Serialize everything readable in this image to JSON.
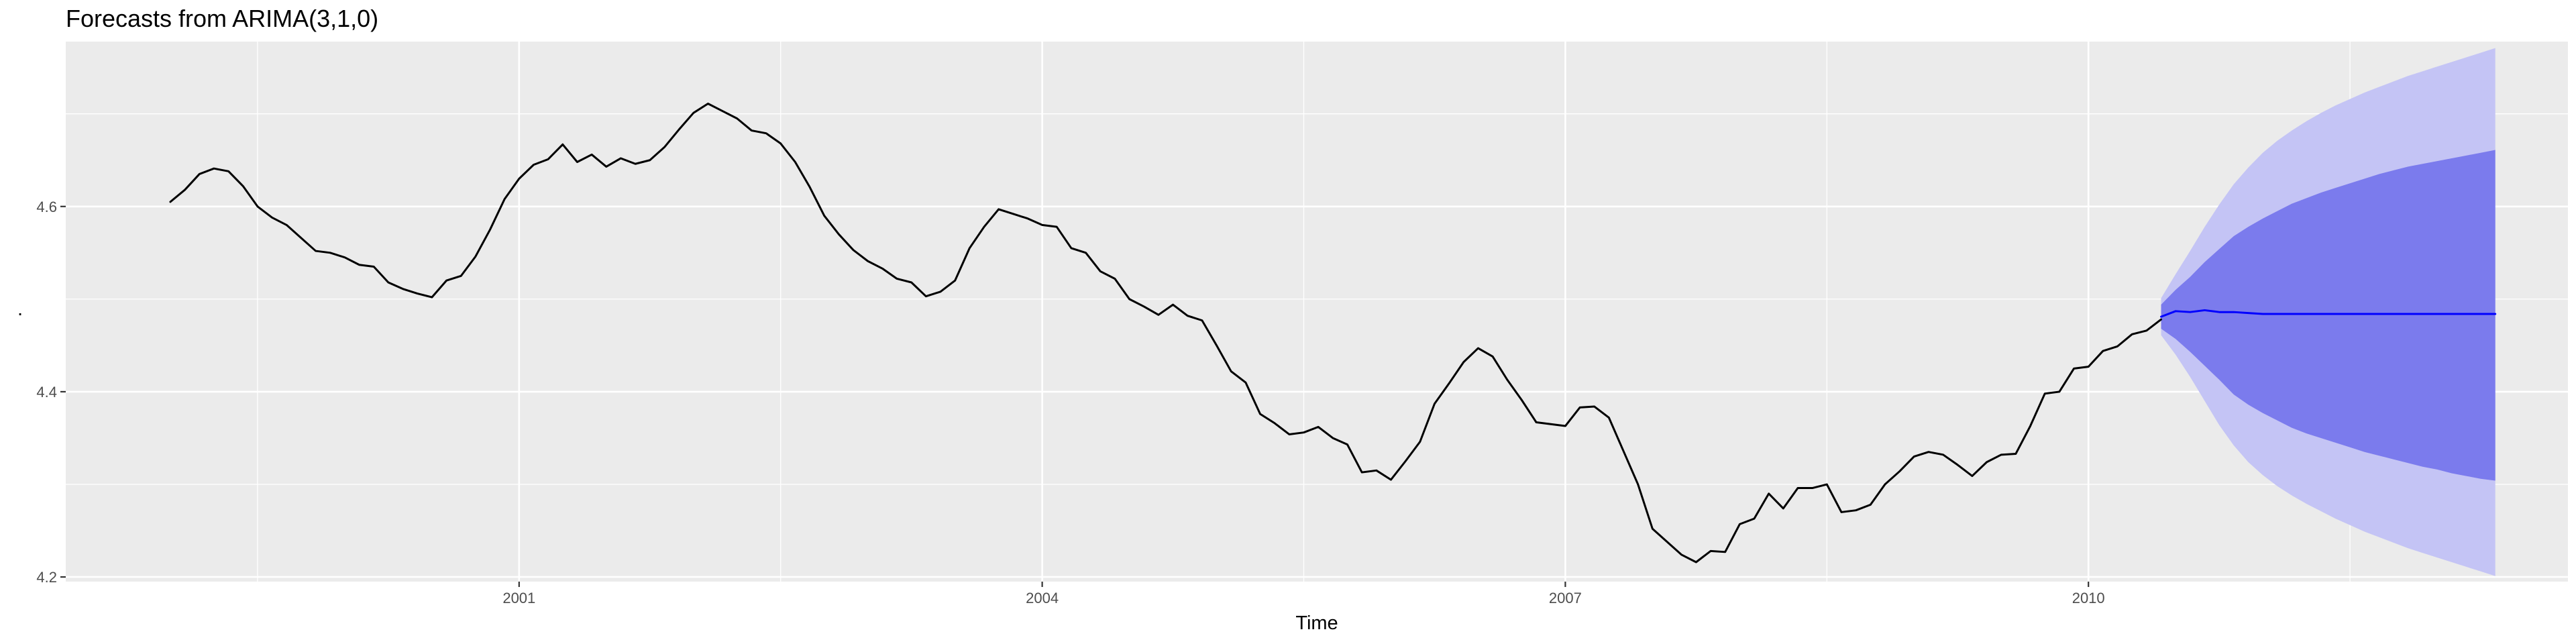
{
  "chart_data": {
    "type": "line",
    "title": "Forecasts from ARIMA(3,1,0)",
    "xlabel": "Time",
    "ylabel": ".",
    "xlim": [
      1998.4,
      2012.75
    ],
    "ylim": [
      4.195,
      4.778
    ],
    "x_ticks": [
      2001,
      2004,
      2007,
      2010
    ],
    "x_tick_labels": [
      "2001",
      "2004",
      "2007",
      "2010"
    ],
    "y_ticks": [
      4.2,
      4.4,
      4.6
    ],
    "y_tick_labels": [
      "4.2",
      "4.4",
      "4.6"
    ],
    "grid": true,
    "series": [
      {
        "role": "observed",
        "color": "#000000",
        "x_start": 1999.0,
        "x_step": 0.0833333,
        "values": [
          4.605,
          4.618,
          4.635,
          4.641,
          4.638,
          4.622,
          4.6,
          4.588,
          4.58,
          4.566,
          4.552,
          4.55,
          4.545,
          4.537,
          4.535,
          4.518,
          4.511,
          4.506,
          4.502,
          4.52,
          4.525,
          4.546,
          4.575,
          4.608,
          4.63,
          4.645,
          4.651,
          4.667,
          4.648,
          4.656,
          4.643,
          4.652,
          4.646,
          4.65,
          4.664,
          4.683,
          4.701,
          4.711,
          4.703,
          4.695,
          4.682,
          4.679,
          4.668,
          4.648,
          4.621,
          4.59,
          4.57,
          4.553,
          4.541,
          4.533,
          4.522,
          4.518,
          4.503,
          4.508,
          4.52,
          4.555,
          4.578,
          4.597,
          4.592,
          4.587,
          4.58,
          4.578,
          4.555,
          4.55,
          4.53,
          4.522,
          4.5,
          4.492,
          4.483,
          4.494,
          4.482,
          4.477,
          4.45,
          4.422,
          4.41,
          4.376,
          4.366,
          4.354,
          4.356,
          4.362,
          4.35,
          4.343,
          4.313,
          4.315,
          4.305,
          4.325,
          4.346,
          4.387,
          4.409,
          4.432,
          4.447,
          4.438,
          4.413,
          4.391,
          4.367,
          4.365,
          4.363,
          4.383,
          4.384,
          4.372,
          4.336,
          4.3,
          4.252,
          4.238,
          4.224,
          4.216,
          4.228,
          4.227,
          4.257,
          4.263,
          4.29,
          4.274,
          4.296,
          4.296,
          4.3,
          4.27,
          4.272,
          4.278,
          4.3,
          4.314,
          4.33,
          4.335,
          4.332,
          4.321,
          4.309,
          4.324,
          4.332,
          4.333,
          4.363,
          4.398,
          4.4,
          4.425,
          4.427,
          4.444,
          4.449,
          4.462,
          4.466,
          4.478
        ]
      },
      {
        "role": "forecast",
        "color": "#0000ff",
        "x_start": 2010.4167,
        "x_step": 0.0833333,
        "values": [
          4.481,
          4.487,
          4.486,
          4.488,
          4.486,
          4.486,
          4.485,
          4.484,
          4.484,
          4.484,
          4.484,
          4.484,
          4.484,
          4.484,
          4.484,
          4.484,
          4.484,
          4.484,
          4.484,
          4.484,
          4.484,
          4.484,
          4.484,
          4.484
        ],
        "lower_80": [
          4.468,
          4.457,
          4.443,
          4.428,
          4.413,
          4.397,
          4.386,
          4.377,
          4.369,
          4.361,
          4.355,
          4.35,
          4.345,
          4.34,
          4.335,
          4.331,
          4.327,
          4.323,
          4.319,
          4.316,
          4.312,
          4.309,
          4.306,
          4.304
        ],
        "upper_80": [
          4.494,
          4.51,
          4.524,
          4.54,
          4.554,
          4.568,
          4.578,
          4.587,
          4.595,
          4.603,
          4.609,
          4.615,
          4.62,
          4.625,
          4.63,
          4.635,
          4.639,
          4.643,
          4.646,
          4.649,
          4.652,
          4.655,
          4.658,
          4.661
        ],
        "lower_95": [
          4.461,
          4.44,
          4.416,
          4.39,
          4.364,
          4.342,
          4.324,
          4.31,
          4.298,
          4.288,
          4.279,
          4.271,
          4.263,
          4.256,
          4.249,
          4.243,
          4.237,
          4.231,
          4.226,
          4.221,
          4.216,
          4.211,
          4.206,
          4.201
        ],
        "upper_95": [
          4.501,
          4.527,
          4.552,
          4.578,
          4.602,
          4.624,
          4.642,
          4.658,
          4.671,
          4.682,
          4.692,
          4.701,
          4.709,
          4.716,
          4.723,
          4.729,
          4.735,
          4.741,
          4.746,
          4.751,
          4.756,
          4.761,
          4.766,
          4.771
        ],
        "band_80_color": "#7b7bed",
        "band_95_color": "#c4c4f5"
      }
    ],
    "colors": {
      "panel_background": "#ebebeb",
      "grid_line": "#ffffff",
      "tick_text": "#4d4d4d",
      "tick_mark": "#333333"
    }
  }
}
